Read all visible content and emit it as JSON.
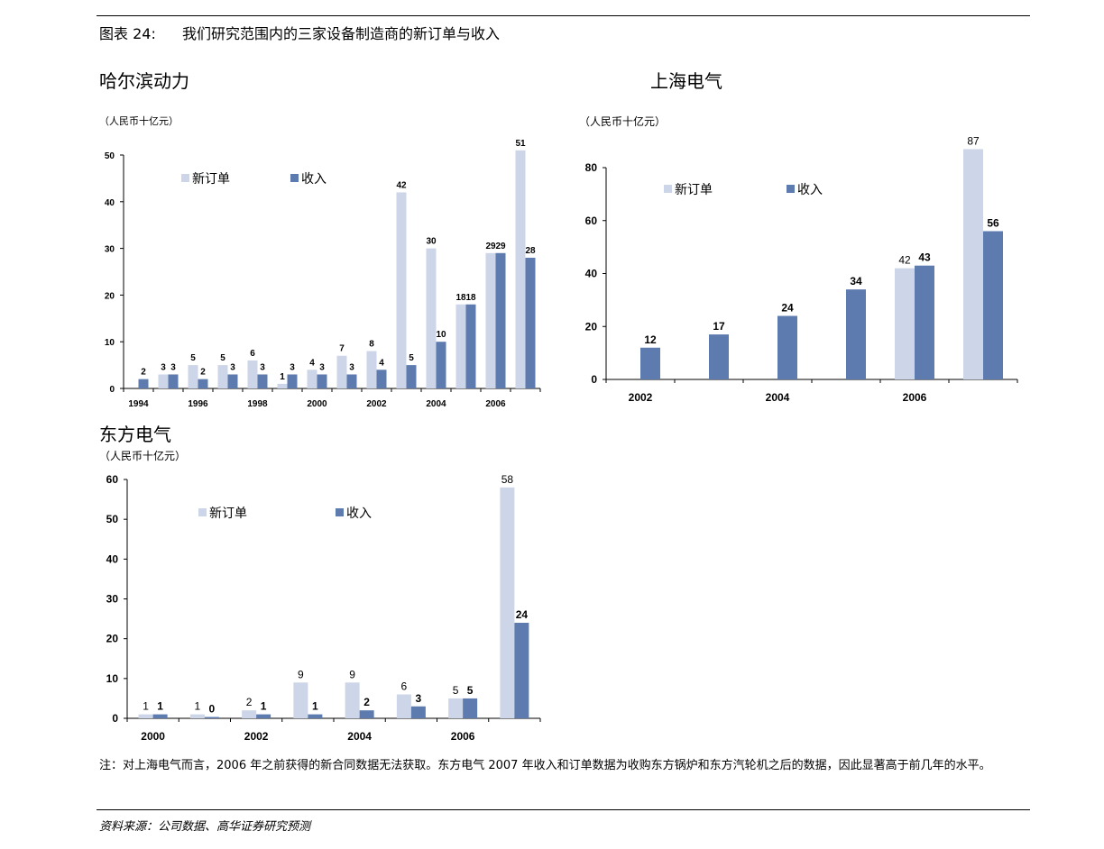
{
  "figure": {
    "label": "图表 24:",
    "title": "我们研究范围内的三家设备制造商的新订单与收入"
  },
  "colors": {
    "new_orders": "#cdd6e8",
    "revenue": "#5e7bb0"
  },
  "legend": {
    "new_orders": "新订单",
    "revenue": "收入"
  },
  "chart_data": [
    {
      "type": "bar",
      "title": "哈尔滨动力",
      "unit": "（人民币十亿元）",
      "ylim": [
        0,
        50
      ],
      "yticks": [
        0,
        10,
        20,
        30,
        40,
        50
      ],
      "categories": [
        "1994",
        "1995",
        "1996",
        "1997",
        "1998",
        "1999",
        "2000",
        "2001",
        "2002",
        "2003",
        "2004",
        "2005",
        "2006",
        "2007"
      ],
      "xtick_labels": [
        "1994",
        "",
        "1996",
        "",
        "1998",
        "",
        "2000",
        "",
        "2002",
        "",
        "2004",
        "",
        "2006",
        ""
      ],
      "series": [
        {
          "name": "新订单",
          "values": [
            null,
            3,
            5,
            5,
            6,
            1,
            4,
            7,
            8,
            42,
            30,
            18,
            29,
            51
          ],
          "labels": [
            "",
            "3",
            "5",
            "5",
            "6",
            "1",
            "4",
            "7",
            "8",
            "42",
            "30",
            "18",
            "29",
            "51"
          ]
        },
        {
          "name": "收入",
          "values": [
            2,
            3,
            2,
            3,
            3,
            3,
            3,
            3,
            4,
            5,
            10,
            18,
            29,
            28
          ],
          "labels": [
            "2",
            "3",
            "2",
            "3",
            "3",
            "3",
            "3",
            "3",
            "4",
            "5",
            "10",
            "18",
            "29",
            "28"
          ]
        }
      ]
    },
    {
      "type": "bar",
      "title": "上海电气",
      "unit": "（人民币十亿元）",
      "ylim": [
        0,
        80
      ],
      "yticks": [
        0,
        20,
        40,
        60,
        80
      ],
      "categories": [
        "2002",
        "2003",
        "2004",
        "2005",
        "2006",
        "2007"
      ],
      "xtick_labels": [
        "2002",
        "",
        "2004",
        "",
        "2006",
        ""
      ],
      "series": [
        {
          "name": "新订单",
          "values": [
            null,
            null,
            null,
            null,
            42,
            87
          ],
          "labels": [
            "",
            "",
            "",
            "",
            "42",
            "87"
          ]
        },
        {
          "name": "收入",
          "values": [
            12,
            17,
            24,
            34,
            43,
            56
          ],
          "labels": [
            "12",
            "17",
            "24",
            "34",
            "43",
            "56"
          ]
        }
      ]
    },
    {
      "type": "bar",
      "title": "东方电气",
      "unit": "（人民币十亿元）",
      "ylim": [
        0,
        60
      ],
      "yticks": [
        0,
        10,
        20,
        30,
        40,
        50,
        60
      ],
      "categories": [
        "2000",
        "2001",
        "2002",
        "2003",
        "2004",
        "2005",
        "2006",
        "2007"
      ],
      "xtick_labels": [
        "2000",
        "",
        "2002",
        "",
        "2004",
        "",
        "2006",
        ""
      ],
      "series": [
        {
          "name": "新订单",
          "values": [
            1,
            1,
            2,
            9,
            9,
            6,
            5,
            58
          ],
          "labels": [
            "1",
            "1",
            "2",
            "9",
            "9",
            "6",
            "5",
            "58"
          ]
        },
        {
          "name": "收入",
          "values": [
            1,
            0,
            1,
            1,
            2,
            3,
            5,
            24
          ],
          "labels": [
            "1",
            "0",
            "1",
            "1",
            "2",
            "3",
            "5",
            "24"
          ]
        }
      ]
    }
  ],
  "note": "注：对上海电气而言，2006 年之前获得的新合同数据无法获取。东方电气 2007 年收入和订单数据为收购东方锅炉和东方汽轮机之后的数据，因此显著高于前几年的水平。",
  "source": "资料来源：公司数据、高华证券研究预测"
}
